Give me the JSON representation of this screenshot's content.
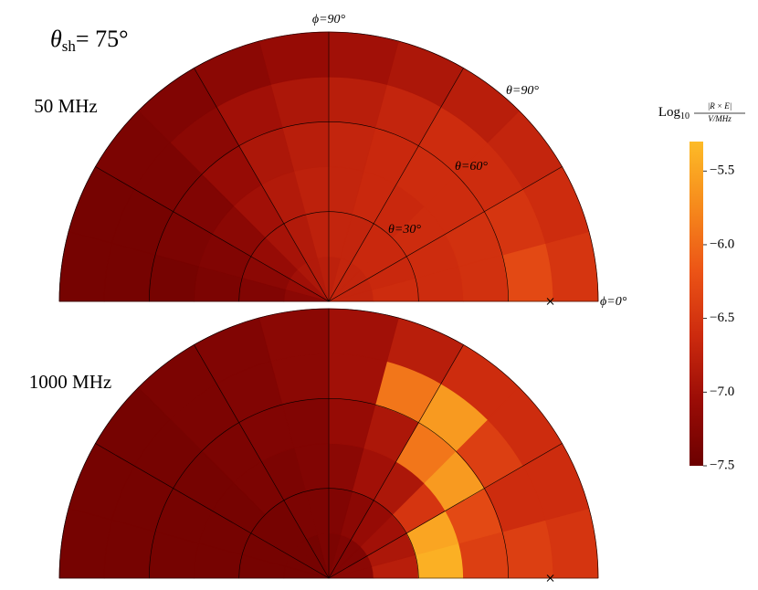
{
  "chart_data": {
    "type": "polar-heatmap",
    "title": {
      "symbol": "θ",
      "subscript": "sh",
      "text": "= 75°"
    },
    "phi_bins": [
      0,
      15,
      30,
      45,
      60,
      75,
      90,
      105,
      120,
      135,
      150,
      165,
      180
    ],
    "theta_bins": [
      0,
      15,
      30,
      45,
      60,
      75,
      90
    ],
    "phi_grid": [
      0,
      30,
      60,
      90,
      120,
      150,
      180
    ],
    "theta_grid": [
      30,
      60,
      90
    ],
    "annotations": {
      "phi90": "ϕ=90°",
      "phi0": "ϕ=0°",
      "theta90": "θ=90°",
      "theta60": "θ=60°",
      "theta30": "θ=30°"
    },
    "marker": {
      "phi": 0,
      "theta": 74
    },
    "colormap": [
      "#6c0000",
      "#9a0c06",
      "#cc2a0e",
      "#ec5416",
      "#f68a1c",
      "#fdbb27"
    ],
    "clim": [
      -7.5,
      -5.3
    ],
    "colorbar_label": {
      "text": "Log",
      "subscript": "10",
      "numerator": "|R × E|",
      "denominator": "V/MHz"
    },
    "colorbar_ticks": [
      {
        "value": -5.5,
        "label": "−5.5"
      },
      {
        "value": -6,
        "label": "−6.0"
      },
      {
        "value": -6.5,
        "label": "−6.5"
      },
      {
        "value": -7,
        "label": "−7.0"
      },
      {
        "value": -7.5,
        "label": "−7.5"
      }
    ],
    "panels": [
      {
        "label": "50 MHz",
        "z": [
          [
            -6.7,
            -6.6,
            -6.6,
            -6.55,
            -6.3,
            -6.5
          ],
          [
            -6.7,
            -6.65,
            -6.6,
            -6.55,
            -6.5,
            -6.6
          ],
          [
            -6.7,
            -6.65,
            -6.6,
            -6.6,
            -6.6,
            -6.7
          ],
          [
            -6.7,
            -6.65,
            -6.65,
            -6.6,
            -6.6,
            -6.8
          ],
          [
            -6.7,
            -6.7,
            -6.65,
            -6.65,
            -6.7,
            -6.9
          ],
          [
            -6.75,
            -6.7,
            -6.7,
            -6.7,
            -6.8,
            -7.0
          ],
          [
            -6.8,
            -6.75,
            -6.75,
            -6.8,
            -6.9,
            -7.1
          ],
          [
            -6.85,
            -6.85,
            -6.85,
            -6.9,
            -7.0,
            -7.2
          ],
          [
            -6.9,
            -6.95,
            -7.0,
            -7.1,
            -7.2,
            -7.3
          ],
          [
            -7.0,
            -7.1,
            -7.2,
            -7.3,
            -7.35,
            -7.35
          ],
          [
            -7.1,
            -7.2,
            -7.3,
            -7.35,
            -7.4,
            -7.4
          ],
          [
            -7.2,
            -7.3,
            -7.35,
            -7.4,
            -7.4,
            -7.4
          ]
        ]
      },
      {
        "label": "1000 MHz",
        "z": [
          [
            -7.2,
            -6.8,
            -5.4,
            -6.4,
            -6.4,
            -6.5
          ],
          [
            -7.2,
            -6.9,
            -5.5,
            -6.3,
            -6.6,
            -6.6
          ],
          [
            -7.3,
            -7.0,
            -6.5,
            -5.6,
            -6.4,
            -6.6
          ],
          [
            -7.3,
            -7.1,
            -6.9,
            -5.9,
            -5.6,
            -6.6
          ],
          [
            -7.3,
            -7.2,
            -7.0,
            -6.9,
            -5.9,
            -6.8
          ],
          [
            -7.35,
            -7.3,
            -7.2,
            -7.1,
            -7.0,
            -7.0
          ],
          [
            -7.35,
            -7.35,
            -7.3,
            -7.3,
            -7.2,
            -7.2
          ],
          [
            -7.4,
            -7.35,
            -7.35,
            -7.3,
            -7.3,
            -7.3
          ],
          [
            -7.4,
            -7.4,
            -7.35,
            -7.35,
            -7.35,
            -7.35
          ],
          [
            -7.4,
            -7.4,
            -7.4,
            -7.4,
            -7.4,
            -7.4
          ],
          [
            -7.4,
            -7.4,
            -7.4,
            -7.4,
            -7.4,
            -7.4
          ],
          [
            -7.4,
            -7.4,
            -7.4,
            -7.4,
            -7.4,
            -7.4
          ]
        ]
      }
    ]
  }
}
